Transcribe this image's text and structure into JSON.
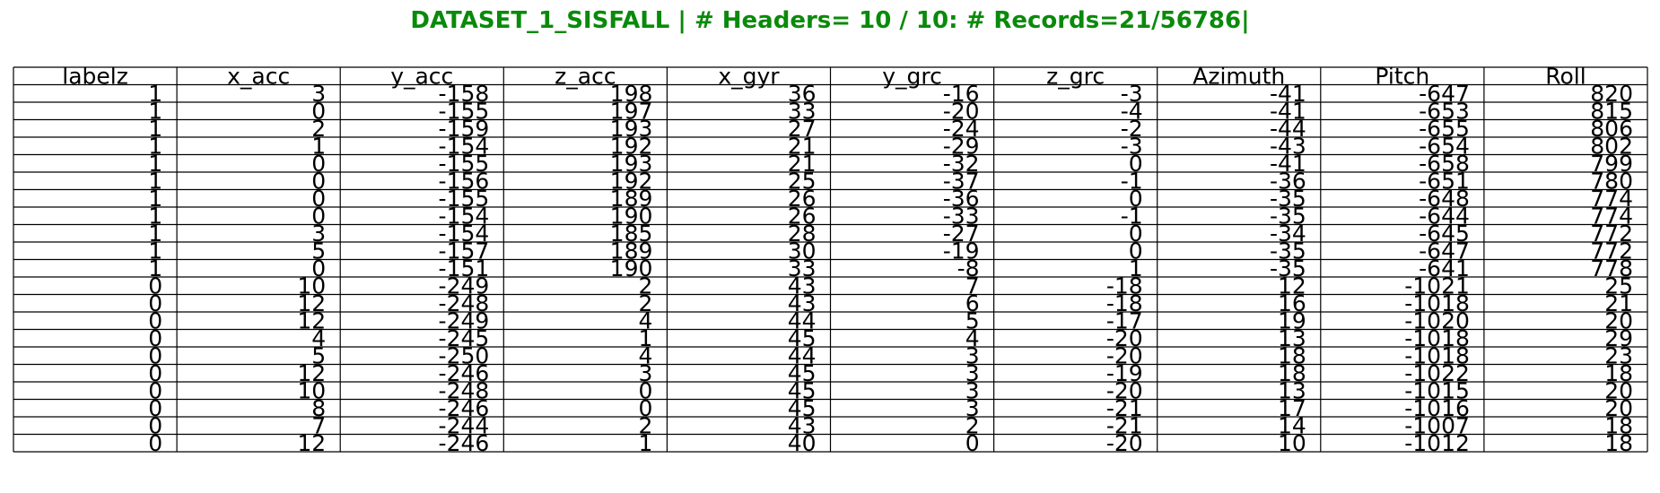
{
  "title": "DATASET_1_SISFALL | # Headers= 10 / 10: # Records=21/56786|",
  "chart_data": {
    "type": "table",
    "columns": [
      "labelz",
      "x_acc",
      "y_acc",
      "z_acc",
      "x_gyr",
      "y_grc",
      "z_grc",
      "Azimuth",
      "Pitch",
      "Roll"
    ],
    "rows": [
      [
        1,
        3,
        -158,
        198,
        36,
        -16,
        -3,
        -41,
        -647,
        820
      ],
      [
        1,
        0,
        -155,
        197,
        33,
        -20,
        -4,
        -41,
        -653,
        815
      ],
      [
        1,
        2,
        -159,
        193,
        27,
        -24,
        -2,
        -44,
        -655,
        806
      ],
      [
        1,
        1,
        -154,
        192,
        21,
        -29,
        -3,
        -43,
        -654,
        802
      ],
      [
        1,
        0,
        -155,
        193,
        21,
        -32,
        0,
        -41,
        -658,
        799
      ],
      [
        1,
        0,
        -156,
        192,
        25,
        -37,
        -1,
        -36,
        -651,
        780
      ],
      [
        1,
        0,
        -155,
        189,
        26,
        -36,
        0,
        -35,
        -648,
        774
      ],
      [
        1,
        0,
        -154,
        190,
        26,
        -33,
        -1,
        -35,
        -644,
        774
      ],
      [
        1,
        3,
        -154,
        185,
        28,
        -27,
        0,
        -34,
        -645,
        772
      ],
      [
        1,
        5,
        -157,
        189,
        30,
        -19,
        0,
        -35,
        -647,
        772
      ],
      [
        1,
        0,
        -151,
        190,
        33,
        -8,
        1,
        -35,
        -641,
        778
      ],
      [
        0,
        10,
        -249,
        2,
        43,
        7,
        -18,
        12,
        -1021,
        25
      ],
      [
        0,
        12,
        -248,
        2,
        43,
        6,
        -18,
        16,
        -1018,
        21
      ],
      [
        0,
        12,
        -249,
        4,
        44,
        5,
        -17,
        19,
        -1020,
        20
      ],
      [
        0,
        4,
        -245,
        1,
        45,
        4,
        -20,
        13,
        -1018,
        29
      ],
      [
        0,
        5,
        -250,
        4,
        44,
        3,
        -20,
        18,
        -1018,
        23
      ],
      [
        0,
        12,
        -246,
        3,
        45,
        3,
        -19,
        18,
        -1022,
        18
      ],
      [
        0,
        10,
        -248,
        0,
        45,
        3,
        -20,
        13,
        -1015,
        20
      ],
      [
        0,
        8,
        -246,
        0,
        45,
        3,
        -21,
        17,
        -1016,
        20
      ],
      [
        0,
        7,
        -244,
        2,
        43,
        2,
        -21,
        14,
        -1007,
        18
      ],
      [
        0,
        12,
        -246,
        1,
        40,
        0,
        -20,
        10,
        -1012,
        18
      ]
    ]
  }
}
